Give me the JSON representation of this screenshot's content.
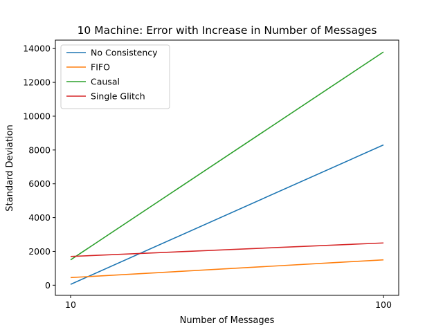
{
  "chart_data": {
    "type": "line",
    "title": "10 Machine: Error with Increase in Number of Messages",
    "xlabel": "Number of Messages",
    "ylabel": "Standard Deviation",
    "x": [
      10,
      100
    ],
    "x_ticks": [
      "10",
      "100"
    ],
    "ylim": [
      -600,
      14500
    ],
    "y_ticks": [
      0,
      2000,
      4000,
      6000,
      8000,
      10000,
      12000,
      14000
    ],
    "y_tick_labels": [
      "0",
      "2000",
      "4000",
      "6000",
      "8000",
      "10000",
      "12000",
      "14000"
    ],
    "grid": false,
    "legend_position": "top-left",
    "series": [
      {
        "name": "No Consistency",
        "values": [
          50,
          8300
        ],
        "color": "#1f77b4"
      },
      {
        "name": "FIFO",
        "values": [
          450,
          1500
        ],
        "color": "#ff7f0e"
      },
      {
        "name": "Causal",
        "values": [
          1500,
          13800
        ],
        "color": "#2ca02c"
      },
      {
        "name": "Single Glitch",
        "values": [
          1700,
          2500
        ],
        "color": "#d62728"
      }
    ]
  }
}
